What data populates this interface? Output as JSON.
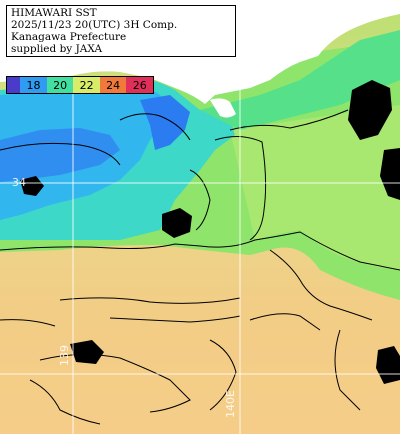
{
  "title": {
    "line1": "HIMAWARI SST",
    "line2": "2025/11/23 20(UTC) 3H Comp.",
    "line3": "Kanagawa Prefecture",
    "line4": "supplied by JAXA"
  },
  "colorbar": {
    "labels": [
      "18",
      "20",
      "22",
      "24",
      "26"
    ],
    "colors": [
      "#4a3cc8",
      "#2f9cf2",
      "#42e0a0",
      "#d8ec6a",
      "#f07a3c",
      "#e0305a"
    ]
  },
  "grid_labels": {
    "lat_34": "34",
    "lon_139": "139",
    "lon_140": "140E"
  },
  "palette": {
    "land": "#ffffff",
    "cloud_mask": "#000000",
    "grid": "#ffffff",
    "sst_18": "#2a7cf0",
    "sst_19": "#30b8f0",
    "sst_20": "#40e0d8",
    "sst_21": "#5ee08a",
    "sst_22": "#9ae870",
    "sst_23": "#e8dc88",
    "sst_24": "#f4cc86"
  }
}
